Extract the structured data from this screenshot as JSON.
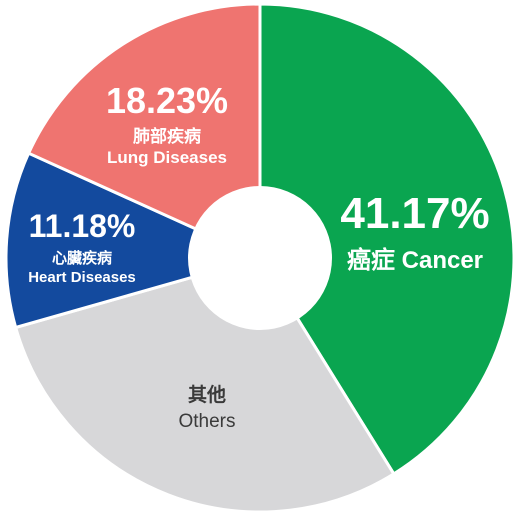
{
  "chart_data": {
    "type": "pie",
    "variant": "donut",
    "title": "",
    "slices": [
      {
        "label_zh": "癌症",
        "label_en": "Cancer",
        "value": 41.17,
        "value_text": "41.17%",
        "color": "#0aa550"
      },
      {
        "label_zh": "其他",
        "label_en": "Others",
        "value": 29.42,
        "value_text": "",
        "color": "#d7d7d9"
      },
      {
        "label_zh": "心臟疾病",
        "label_en": "Heart Diseases",
        "value": 11.18,
        "value_text": "11.18%",
        "color": "#134a9e"
      },
      {
        "label_zh": "肺部疾病",
        "label_en": "Lung Diseases",
        "value": 18.23,
        "value_text": "18.23%",
        "color": "#ef7470"
      }
    ]
  }
}
